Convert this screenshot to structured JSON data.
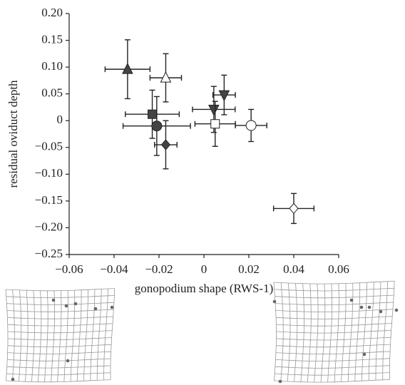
{
  "chart_data": {
    "type": "scatter",
    "xlabel": "gonopodium shape (RWS-1)",
    "ylabel": "residual oviduct depth",
    "xlim": [
      -0.06,
      0.06
    ],
    "ylim": [
      -0.25,
      0.2
    ],
    "xticks": [
      {
        "value": -0.06,
        "label": "−0.06"
      },
      {
        "value": -0.04,
        "label": "−0.04"
      },
      {
        "value": -0.02,
        "label": "−0.02"
      },
      0,
      0.02,
      0.04,
      0.06
    ],
    "yticks": [
      {
        "value": 0.2,
        "label": "0.20"
      },
      0.15,
      {
        "value": 0.1,
        "label": "0.10"
      },
      0.05,
      0,
      {
        "value": -0.05,
        "label": "−0.05"
      },
      {
        "value": -0.1,
        "label": "−0.10"
      },
      {
        "value": -0.15,
        "label": "−0.15"
      },
      {
        "value": -0.2,
        "label": "−0.20"
      },
      {
        "value": -0.25,
        "label": "−0.25"
      }
    ],
    "points": [
      {
        "x": -0.034,
        "y": 0.096,
        "xerr": 0.01,
        "yerr": 0.055,
        "marker": "triangle-up",
        "fill": "#444"
      },
      {
        "x": -0.017,
        "y": 0.08,
        "xerr": 0.007,
        "yerr": 0.045,
        "marker": "triangle-up",
        "fill": "#fff"
      },
      {
        "x": -0.023,
        "y": 0.012,
        "xerr": 0.012,
        "yerr": 0.045,
        "marker": "square",
        "fill": "#444"
      },
      {
        "x": -0.021,
        "y": -0.01,
        "xerr": 0.015,
        "yerr": 0.055,
        "marker": "circle",
        "fill": "#444"
      },
      {
        "x": -0.017,
        "y": -0.045,
        "xerr": 0.005,
        "yerr": 0.045,
        "marker": "diamond",
        "fill": "#444"
      },
      {
        "x": 0.0044,
        "y": 0.021,
        "xerr": 0.0095,
        "yerr": 0.043,
        "marker": "triangle-down",
        "fill": "#444"
      },
      {
        "x": 0.009,
        "y": 0.048,
        "xerr": 0.005,
        "yerr": 0.037,
        "marker": "triangle-down",
        "fill": "#444"
      },
      {
        "x": 0.005,
        "y": -0.006,
        "xerr": 0.009,
        "yerr": 0.042,
        "marker": "square",
        "fill": "#fff"
      },
      {
        "x": 0.021,
        "y": -0.009,
        "xerr": 0.007,
        "yerr": 0.03,
        "marker": "circle",
        "fill": "#fff"
      },
      {
        "x": 0.04,
        "y": -0.164,
        "xerr": 0.009,
        "yerr": 0.028,
        "marker": "diamond",
        "fill": "#fff"
      }
    ]
  }
}
